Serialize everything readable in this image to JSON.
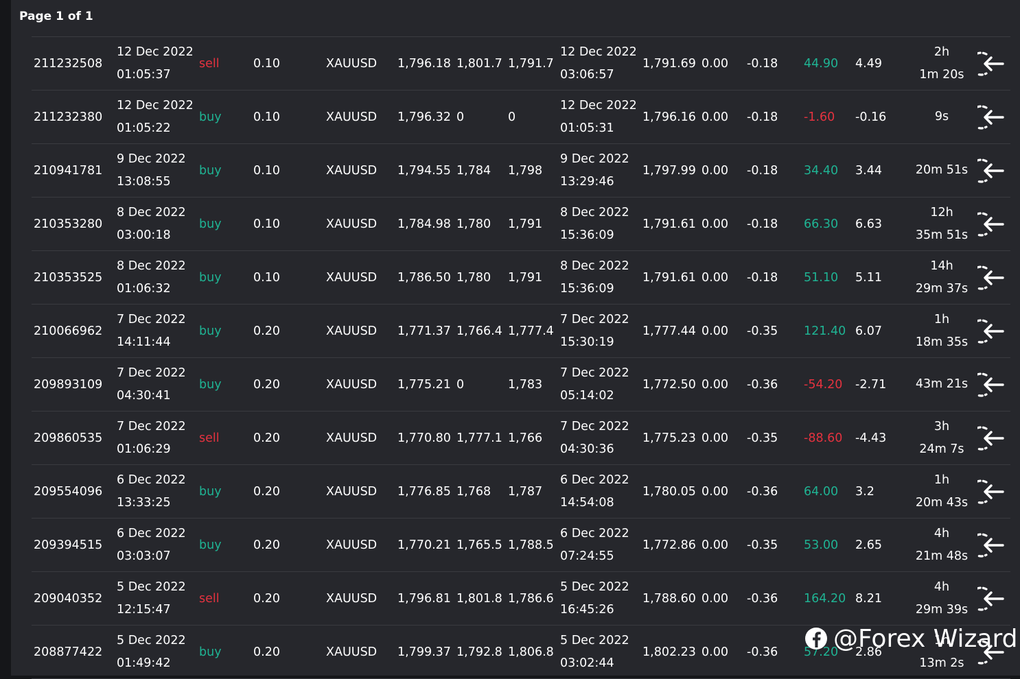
{
  "page_label": "Page 1 of 1",
  "colors": {
    "buy": "#1fb393",
    "sell": "#e5323f",
    "profit_positive": "#1fb393",
    "profit_negative": "#e5323f"
  },
  "trades": [
    {
      "ticket": "211232508",
      "open_date": "12 Dec 2022",
      "open_time": "01:05:37",
      "type": "sell",
      "volume": "0.10",
      "symbol": "XAUUSD",
      "open_price": "1,796.18",
      "sl": "1,801.7",
      "tp": "1,791.7",
      "close_date": "12 Dec 2022",
      "close_time": "03:06:57",
      "close_price": "1,791.69",
      "commission": "0.00",
      "swap": "-0.18",
      "profit": "44.90",
      "profit_sign": "pos",
      "pips": "4.49",
      "duration_1": "2h",
      "duration_2": "1m 20s"
    },
    {
      "ticket": "211232380",
      "open_date": "12 Dec 2022",
      "open_time": "01:05:22",
      "type": "buy",
      "volume": "0.10",
      "symbol": "XAUUSD",
      "open_price": "1,796.32",
      "sl": "0",
      "tp": "0",
      "close_date": "12 Dec 2022",
      "close_time": "01:05:31",
      "close_price": "1,796.16",
      "commission": "0.00",
      "swap": "-0.18",
      "profit": "-1.60",
      "profit_sign": "neg",
      "pips": "-0.16",
      "duration_1": "9s",
      "duration_2": ""
    },
    {
      "ticket": "210941781",
      "open_date": "9 Dec 2022",
      "open_time": "13:08:55",
      "type": "buy",
      "volume": "0.10",
      "symbol": "XAUUSD",
      "open_price": "1,794.55",
      "sl": "1,784",
      "tp": "1,798",
      "close_date": "9 Dec 2022",
      "close_time": "13:29:46",
      "close_price": "1,797.99",
      "commission": "0.00",
      "swap": "-0.18",
      "profit": "34.40",
      "profit_sign": "pos",
      "pips": "3.44",
      "duration_1": "20m 51s",
      "duration_2": ""
    },
    {
      "ticket": "210353280",
      "open_date": "8 Dec 2022",
      "open_time": "03:00:18",
      "type": "buy",
      "volume": "0.10",
      "symbol": "XAUUSD",
      "open_price": "1,784.98",
      "sl": "1,780",
      "tp": "1,791",
      "close_date": "8 Dec 2022",
      "close_time": "15:36:09",
      "close_price": "1,791.61",
      "commission": "0.00",
      "swap": "-0.18",
      "profit": "66.30",
      "profit_sign": "pos",
      "pips": "6.63",
      "duration_1": "12h",
      "duration_2": "35m 51s"
    },
    {
      "ticket": "210353525",
      "open_date": "8 Dec 2022",
      "open_time": "01:06:32",
      "type": "buy",
      "volume": "0.10",
      "symbol": "XAUUSD",
      "open_price": "1,786.50",
      "sl": "1,780",
      "tp": "1,791",
      "close_date": "8 Dec 2022",
      "close_time": "15:36:09",
      "close_price": "1,791.61",
      "commission": "0.00",
      "swap": "-0.18",
      "profit": "51.10",
      "profit_sign": "pos",
      "pips": "5.11",
      "duration_1": "14h",
      "duration_2": "29m 37s"
    },
    {
      "ticket": "210066962",
      "open_date": "7 Dec 2022",
      "open_time": "14:11:44",
      "type": "buy",
      "volume": "0.20",
      "symbol": "XAUUSD",
      "open_price": "1,771.37",
      "sl": "1,766.4",
      "tp": "1,777.4",
      "close_date": "7 Dec 2022",
      "close_time": "15:30:19",
      "close_price": "1,777.44",
      "commission": "0.00",
      "swap": "-0.35",
      "profit": "121.40",
      "profit_sign": "pos",
      "pips": "6.07",
      "duration_1": "1h",
      "duration_2": "18m 35s"
    },
    {
      "ticket": "209893109",
      "open_date": "7 Dec 2022",
      "open_time": "04:30:41",
      "type": "buy",
      "volume": "0.20",
      "symbol": "XAUUSD",
      "open_price": "1,775.21",
      "sl": "0",
      "tp": "1,783",
      "close_date": "7 Dec 2022",
      "close_time": "05:14:02",
      "close_price": "1,772.50",
      "commission": "0.00",
      "swap": "-0.36",
      "profit": "-54.20",
      "profit_sign": "neg",
      "pips": "-2.71",
      "duration_1": "43m 21s",
      "duration_2": ""
    },
    {
      "ticket": "209860535",
      "open_date": "7 Dec 2022",
      "open_time": "01:06:29",
      "type": "sell",
      "volume": "0.20",
      "symbol": "XAUUSD",
      "open_price": "1,770.80",
      "sl": "1,777.1",
      "tp": "1,766",
      "close_date": "7 Dec 2022",
      "close_time": "04:30:36",
      "close_price": "1,775.23",
      "commission": "0.00",
      "swap": "-0.35",
      "profit": "-88.60",
      "profit_sign": "neg",
      "pips": "-4.43",
      "duration_1": "3h",
      "duration_2": "24m 7s"
    },
    {
      "ticket": "209554096",
      "open_date": "6 Dec 2022",
      "open_time": "13:33:25",
      "type": "buy",
      "volume": "0.20",
      "symbol": "XAUUSD",
      "open_price": "1,776.85",
      "sl": "1,768",
      "tp": "1,787",
      "close_date": "6 Dec 2022",
      "close_time": "14:54:08",
      "close_price": "1,780.05",
      "commission": "0.00",
      "swap": "-0.36",
      "profit": "64.00",
      "profit_sign": "pos",
      "pips": "3.2",
      "duration_1": "1h",
      "duration_2": "20m 43s"
    },
    {
      "ticket": "209394515",
      "open_date": "6 Dec 2022",
      "open_time": "03:03:07",
      "type": "buy",
      "volume": "0.20",
      "symbol": "XAUUSD",
      "open_price": "1,770.21",
      "sl": "1,765.5",
      "tp": "1,788.5",
      "close_date": "6 Dec 2022",
      "close_time": "07:24:55",
      "close_price": "1,772.86",
      "commission": "0.00",
      "swap": "-0.35",
      "profit": "53.00",
      "profit_sign": "pos",
      "pips": "2.65",
      "duration_1": "4h",
      "duration_2": "21m 48s"
    },
    {
      "ticket": "209040352",
      "open_date": "5 Dec 2022",
      "open_time": "12:15:47",
      "type": "sell",
      "volume": "0.20",
      "symbol": "XAUUSD",
      "open_price": "1,796.81",
      "sl": "1,801.8",
      "tp": "1,786.6",
      "close_date": "5 Dec 2022",
      "close_time": "16:45:26",
      "close_price": "1,788.60",
      "commission": "0.00",
      "swap": "-0.36",
      "profit": "164.20",
      "profit_sign": "pos",
      "pips": "8.21",
      "duration_1": "4h",
      "duration_2": "29m 39s"
    },
    {
      "ticket": "208877422",
      "open_date": "5 Dec 2022",
      "open_time": "01:49:42",
      "type": "buy",
      "volume": "0.20",
      "symbol": "XAUUSD",
      "open_price": "1,799.37",
      "sl": "1,792.8",
      "tp": "1,806.8",
      "close_date": "5 Dec 2022",
      "close_time": "03:02:44",
      "close_price": "1,802.23",
      "commission": "0.00",
      "swap": "-0.36",
      "profit": "57.20",
      "profit_sign": "pos",
      "pips": "2.86",
      "duration_1": "1h",
      "duration_2": "13m 2s"
    }
  ],
  "close_icon": "close-position-icon",
  "watermark": {
    "icon": "facebook-icon",
    "text": "@Forex Wizard"
  }
}
